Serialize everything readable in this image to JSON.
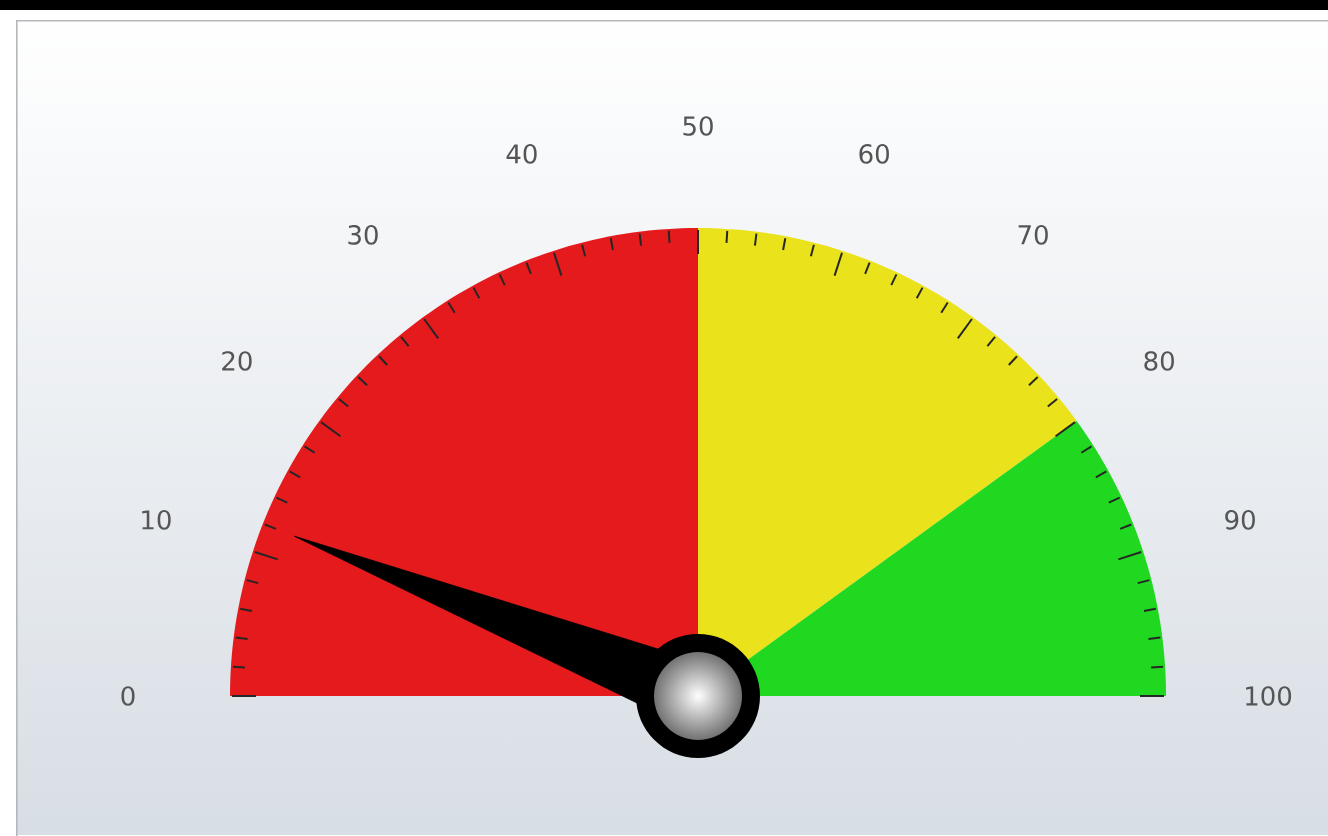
{
  "chart_data": {
    "type": "pie",
    "categories": [
      null,
      null,
      null
    ],
    "values": [
      50,
      30,
      20
    ],
    "colors": [
      "#e41a1c",
      "#eae31c",
      "#1fd81f"
    ],
    "needle": null,
    "annotations": [
      "0",
      "10",
      "20",
      "30",
      "40",
      "50",
      "60",
      "70",
      "80",
      "90",
      "100"
    ]
  }
}
